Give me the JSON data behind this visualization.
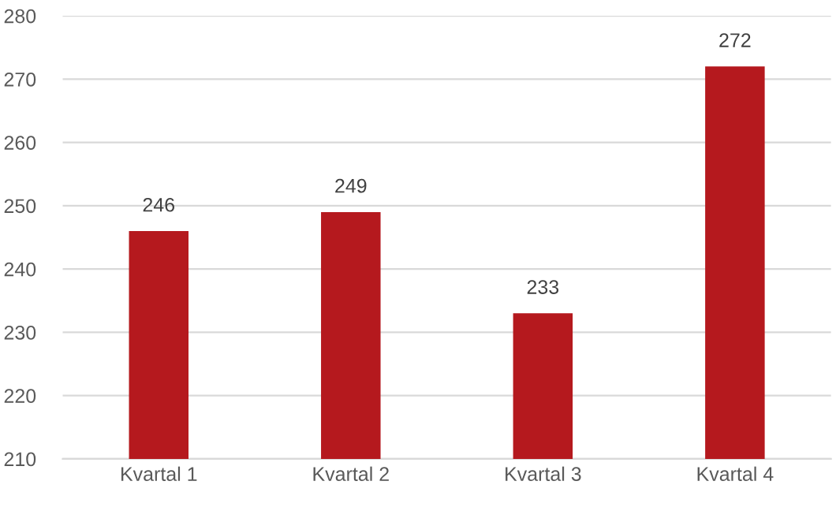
{
  "chart_data": {
    "type": "bar",
    "categories": [
      "Kvartal 1",
      "Kvartal 2",
      "Kvartal 3",
      "Kvartal 4"
    ],
    "values": [
      246,
      249,
      233,
      272
    ],
    "color": "#b5191e",
    "ylim": [
      210,
      280
    ],
    "yticks": [
      210,
      220,
      230,
      240,
      250,
      260,
      270,
      280
    ],
    "grid": "y",
    "data_labels": true
  }
}
